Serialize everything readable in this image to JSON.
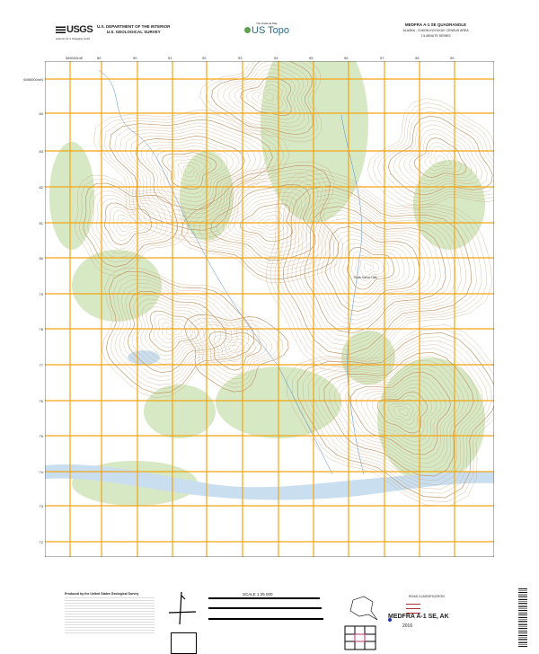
{
  "header": {
    "agency_logo": "USGS",
    "agency_tagline": "science for a changing world",
    "department": "U.S. DEPARTMENT OF THE INTERIOR",
    "survey": "U.S. GEOLOGICAL SURVEY",
    "product_tagline": "The National Map",
    "product_name": "US Topo",
    "quad_title": "MEDFRA A-1 SE QUADRANGLE",
    "quad_region": "ALASKA - YUKON-KOYUKUK CENSUS AREA",
    "quad_series": "7.5-MINUTE SERIES"
  },
  "map": {
    "grid_top_labels": [
      "589000mE",
      "89",
      "90",
      "91",
      "92",
      "93",
      "94",
      "95",
      "96",
      "97",
      "98",
      "99"
    ],
    "grid_left_labels": [
      "6985000mN",
      "84",
      "83",
      "82",
      "81",
      "80",
      "79",
      "78",
      "77",
      "76",
      "75",
      "74",
      "73",
      "72"
    ],
    "feature_label": "Peak Name Hills",
    "colors": {
      "grid": "#f2a516",
      "contour": "#c59a6d",
      "vegetation": "#d6e8c4",
      "water": "#c9dff0",
      "stream": "#4f8fcf"
    }
  },
  "footer": {
    "producer": "Produced by the United States Geological Survey",
    "scale": "SCALE 1:25 000",
    "legend_title": "ROAD CLASSIFICATION",
    "title": "MEDFRA A-1 SE, AK",
    "year": "2016"
  }
}
